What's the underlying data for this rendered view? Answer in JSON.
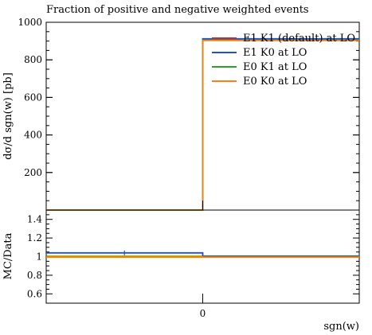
{
  "chart_data": [
    {
      "type": "line",
      "subtype": "step",
      "title": "Fraction of positive and negative weighted events",
      "xlabel": "",
      "ylabel": "dσ/d sgn(w) [pb]",
      "xlim": [
        -1,
        1
      ],
      "ylim": [
        0,
        1000
      ],
      "yticks": [
        200,
        400,
        600,
        800,
        1000
      ],
      "bin_edges": [
        -1,
        0,
        1
      ],
      "legend_position": "top-right",
      "series": [
        {
          "name": "E1 K1 (default) at LO",
          "color": "#d62728",
          "values": [
            0,
            908
          ]
        },
        {
          "name": "E1 K0 at LO",
          "color": "#1f4fd6",
          "values": [
            0,
            912
          ]
        },
        {
          "name": "E0 K1 at LO",
          "color": "#2ca02c",
          "values": [
            0,
            905
          ]
        },
        {
          "name": "E0 K0 at LO",
          "color": "#ff7f0e",
          "values": [
            0,
            903
          ]
        }
      ]
    },
    {
      "type": "line",
      "subtype": "step",
      "xlabel": "sgn(w)",
      "ylabel": "MC/Data",
      "xlim": [
        -1,
        1
      ],
      "ylim": [
        0.5,
        1.5
      ],
      "yticks": [
        0.6,
        0.8,
        1,
        1.2,
        1.4
      ],
      "ytick_labels": [
        "0.6",
        "0.8",
        "1",
        "1.2",
        "1.4"
      ],
      "xticks": [
        0
      ],
      "xtick_labels": [
        "0"
      ],
      "band": {
        "color": "#e8e800",
        "lower": [
          0.985,
          0.995
        ],
        "upper": [
          1.015,
          1.005
        ]
      },
      "series": [
        {
          "name": "E1 K1 (default) at LO",
          "color": "#d62728",
          "values": [
            1.0,
            1.0
          ]
        },
        {
          "name": "E1 K0 at LO",
          "color": "#1f4fd6",
          "values": [
            1.04,
            1.005
          ],
          "error": [
            0.05,
            0.0
          ]
        },
        {
          "name": "E0 K1 at LO",
          "color": "#2ca02c",
          "values": [
            1.0,
            0.997
          ]
        },
        {
          "name": "E0 K0 at LO",
          "color": "#ff7f0e",
          "values": [
            0.995,
            0.994
          ]
        }
      ]
    }
  ]
}
